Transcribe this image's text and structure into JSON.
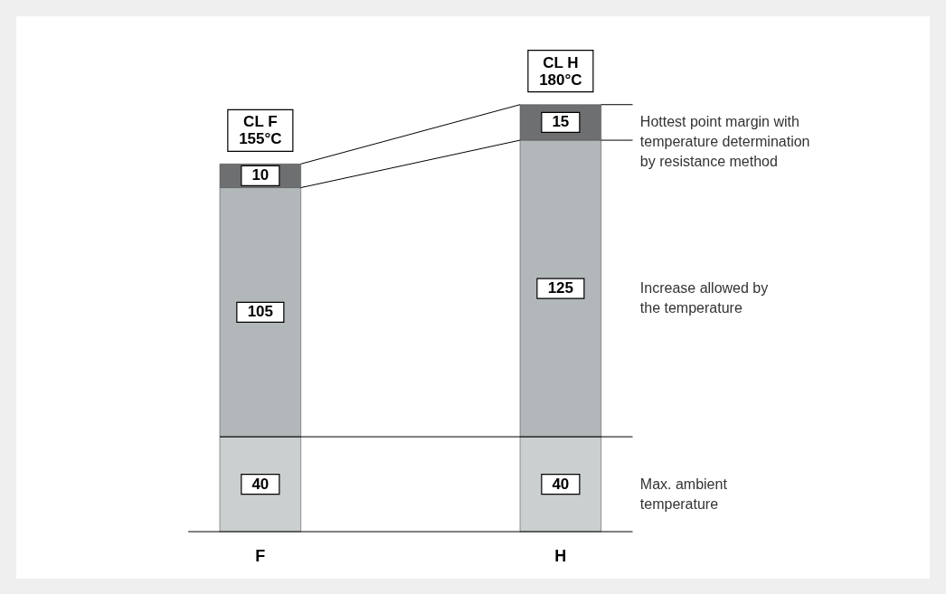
{
  "chart_data": {
    "type": "bar",
    "stacked": true,
    "categories": [
      "F",
      "H"
    ],
    "series": [
      {
        "name": "Max. ambient\ntemperature",
        "color": "#cbcfd0",
        "values": [
          40,
          40
        ]
      },
      {
        "name": "Increase allowed by\nthe temperature",
        "color": "#b2b7ba",
        "values": [
          105,
          125
        ]
      },
      {
        "name": "Hottest point margin with\ntemperature determination\nby resistance method",
        "color": "#6e6f71",
        "values": [
          10,
          15
        ]
      }
    ],
    "ref_lines": [
      {
        "axis": "y",
        "value": 40
      }
    ],
    "totals": [
      "CL F\n155°C",
      "CL H\n180°C"
    ],
    "data_labels": true
  }
}
